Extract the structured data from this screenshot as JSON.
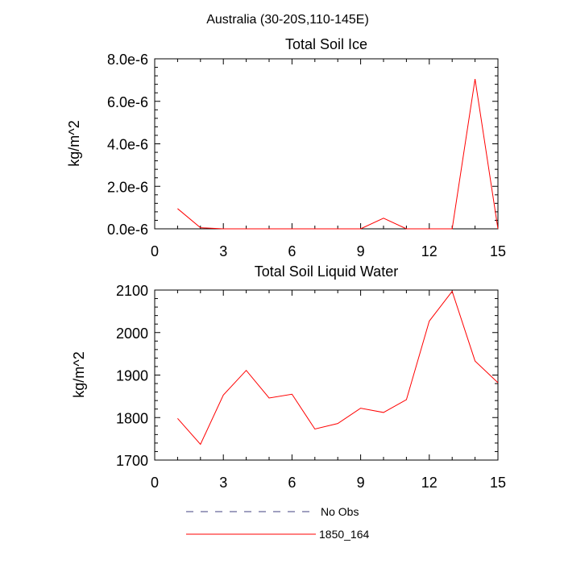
{
  "figure": {
    "title": "Australia (30-20S,110-145E)"
  },
  "chart_data": [
    {
      "type": "line",
      "title": "Total Soil Ice",
      "xlabel": "",
      "ylabel": "kg/m^2",
      "xlim": [
        0,
        15
      ],
      "ylim": [
        0,
        8e-06
      ],
      "xticks": [
        "0",
        "3",
        "6",
        "9",
        "12",
        "15"
      ],
      "yticks": [
        "0.0e-6",
        "2.0e-6",
        "4.0e-6",
        "6.0e-6",
        "8.0e-6"
      ],
      "series": [
        {
          "name": "1850_164",
          "color": "#ff0000",
          "x": [
            1,
            2,
            3,
            4,
            5,
            6,
            7,
            8,
            9,
            10,
            11,
            12,
            13,
            14,
            15
          ],
          "y": [
            9.5e-07,
            5e-08,
            0,
            0,
            0,
            0,
            0,
            0,
            0,
            5e-07,
            0,
            0,
            0,
            7.05e-06,
            0
          ]
        }
      ]
    },
    {
      "type": "line",
      "title": "Total Soil Liquid Water",
      "xlabel": "",
      "ylabel": "kg/m^2",
      "xlim": [
        0,
        15
      ],
      "ylim": [
        1700,
        2100
      ],
      "xticks": [
        "0",
        "3",
        "6",
        "9",
        "12",
        "15"
      ],
      "yticks": [
        "1700",
        "1800",
        "1900",
        "2000",
        "2100"
      ],
      "series": [
        {
          "name": "1850_164",
          "color": "#ff0000",
          "x": [
            1,
            2,
            3,
            4,
            5,
            6,
            7,
            8,
            9,
            10,
            11,
            12,
            13,
            14,
            15
          ],
          "y": [
            1798,
            1737,
            1853,
            1911,
            1846,
            1855,
            1773,
            1786,
            1822,
            1812,
            1842,
            2027,
            2097,
            1933,
            1882
          ]
        }
      ]
    }
  ],
  "legend": {
    "placement": "bottom",
    "items": [
      {
        "label": "No Obs",
        "color": "#404080",
        "style": "dashed"
      },
      {
        "label": "1850_164",
        "color": "#ff0000",
        "style": "solid"
      }
    ]
  }
}
